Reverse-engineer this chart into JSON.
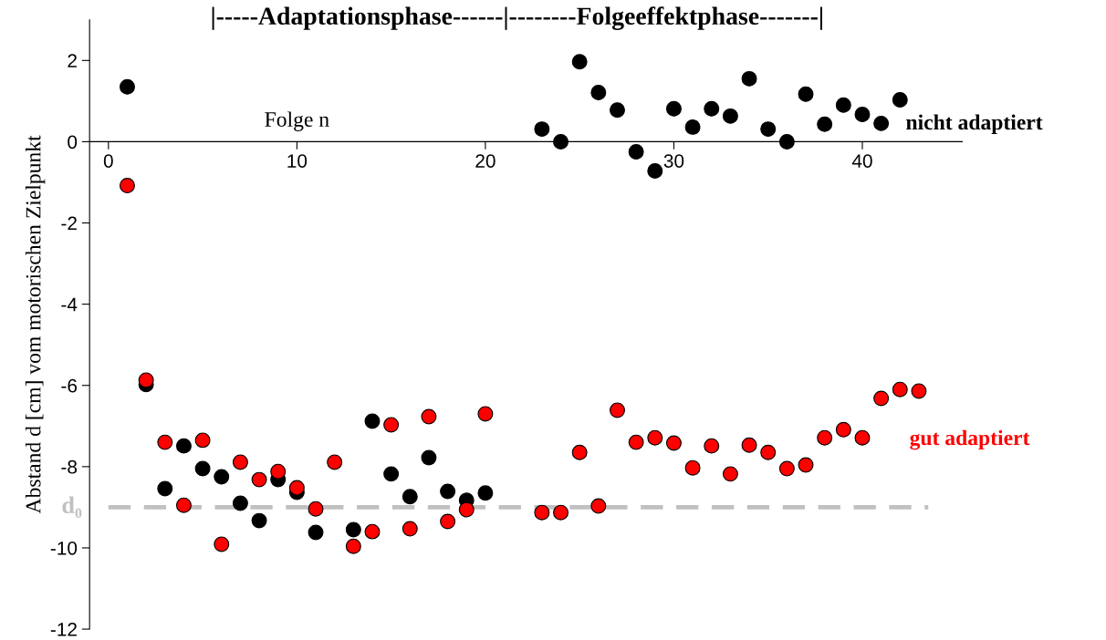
{
  "chart_data": {
    "type": "scatter",
    "title": "|-----Adaptationsphase------|--------Folgeeffektphase-------|",
    "xlabel": "Folge n",
    "ylabel": "Abstand d [cm] vom motorischen Zielpunkt",
    "series": [
      {
        "name": "nicht adaptiert",
        "color": "#000000",
        "x": [
          1,
          2,
          3,
          4,
          5,
          6,
          7,
          8,
          9,
          10,
          11,
          12,
          13,
          14,
          15,
          16,
          17,
          18,
          19,
          20,
          23,
          24,
          25,
          26,
          27,
          28,
          29,
          30,
          31,
          32,
          33,
          34,
          35,
          36,
          37,
          38,
          39,
          40,
          41,
          42
        ],
        "values": [
          1.35,
          -5.98,
          -8.54,
          -7.49,
          -8.05,
          -8.25,
          -8.9,
          -9.33,
          -8.32,
          -8.63,
          -9.62,
          null,
          -9.55,
          -6.88,
          -8.18,
          -8.74,
          -7.78,
          -8.61,
          -8.83,
          -8.65,
          0.31,
          0,
          1.97,
          1.21,
          0.78,
          -0.25,
          -0.72,
          0.81,
          0.36,
          0.81,
          0.63,
          1.55,
          0.31,
          0,
          1.17,
          0.43,
          0.9,
          0.67,
          0.45,
          1.03
        ]
      },
      {
        "name": "gut adaptiert",
        "color": "#ff0000",
        "x": [
          1,
          2,
          3,
          4,
          5,
          6,
          7,
          8,
          9,
          10,
          11,
          12,
          13,
          14,
          15,
          16,
          17,
          18,
          19,
          20,
          23,
          24,
          25,
          26,
          27,
          28,
          29,
          30,
          31,
          32,
          33,
          34,
          35,
          36,
          37,
          38,
          39,
          40,
          41,
          42,
          43
        ],
        "values": [
          -1.08,
          -5.87,
          -7.4,
          -8.95,
          -7.35,
          -9.91,
          -7.89,
          -8.32,
          -8.12,
          -8.52,
          -9.04,
          -7.89,
          -9.96,
          -9.6,
          -6.97,
          -9.53,
          -6.77,
          -9.35,
          -9.06,
          -6.7,
          -9.13,
          -9.13,
          -7.65,
          -8.97,
          -6.61,
          -7.4,
          -7.29,
          -7.42,
          -8.03,
          -7.49,
          -8.18,
          -7.47,
          -7.65,
          -8.05,
          -7.96,
          -7.29,
          -7.09,
          -7.29,
          -6.32,
          -6.1,
          -6.14
        ]
      }
    ],
    "xlim": [
      -1,
      45.3
    ],
    "ylim": [
      -12,
      3
    ],
    "xticks": [
      0,
      10,
      20,
      30,
      40
    ],
    "yticks": [
      -12,
      -10,
      -8,
      -6,
      -4,
      -2,
      0,
      2
    ],
    "ref_lines": [
      {
        "axis": "y",
        "value": -9,
        "label": "d₀",
        "color": "#c0c0c0",
        "line_style": "dashed"
      }
    ],
    "marker": "circle",
    "legend": false,
    "grid": false
  }
}
